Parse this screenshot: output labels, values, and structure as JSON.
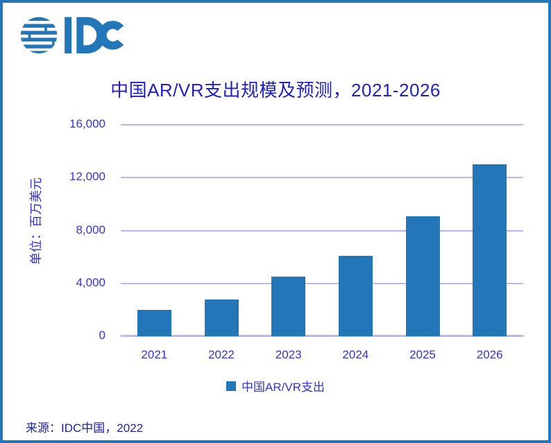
{
  "logo": {
    "text": "IDC",
    "color": "#2377B8"
  },
  "title": {
    "text": "中国AR/VR支出规模及预测，2021-2026"
  },
  "chart_data": {
    "type": "bar",
    "title": "中国AR/VR支出规模及预测，2021-2026",
    "categories": [
      "2021",
      "2022",
      "2023",
      "2024",
      "2025",
      "2026"
    ],
    "values": [
      2000,
      2800,
      4500,
      6100,
      9100,
      13000
    ],
    "series_name": "中国AR/VR支出",
    "xlabel": "",
    "ylabel": "单位：百万美元",
    "ylim": [
      0,
      16000
    ],
    "yticks": [
      0,
      4000,
      8000,
      12000,
      16000
    ],
    "ytick_labels": [
      "0",
      "4,000",
      "8,000",
      "12,000",
      "16,000"
    ],
    "grid": true,
    "legend_position": "bottom",
    "bar_color": "#2377B8",
    "grid_color": "#B9B6EA",
    "label_color": "#3434CE"
  },
  "legend": {
    "label": "中国AR/VR支出",
    "swatch_color": "#2377B8"
  },
  "source": {
    "text": "来源：IDC中国，2022"
  }
}
